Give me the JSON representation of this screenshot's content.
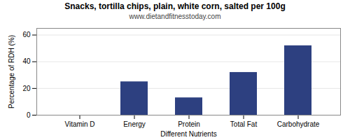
{
  "chart_data": {
    "type": "bar",
    "title": "Snacks, tortilla chips, plain, white corn, salted per 100g",
    "subtitle": "www.dietandfitnesstoday.com",
    "xlabel": "Different Nutrients",
    "ylabel": "Percentage of RDH (%)",
    "categories": [
      "Vitamin D",
      "Energy",
      "Protein",
      "Total Fat",
      "Carbohydrate"
    ],
    "values": [
      0,
      25,
      13,
      32,
      52
    ],
    "color": "#2d4080",
    "ylim": [
      0,
      65
    ],
    "yticks": [
      0,
      20,
      40,
      60
    ],
    "grid": true
  }
}
